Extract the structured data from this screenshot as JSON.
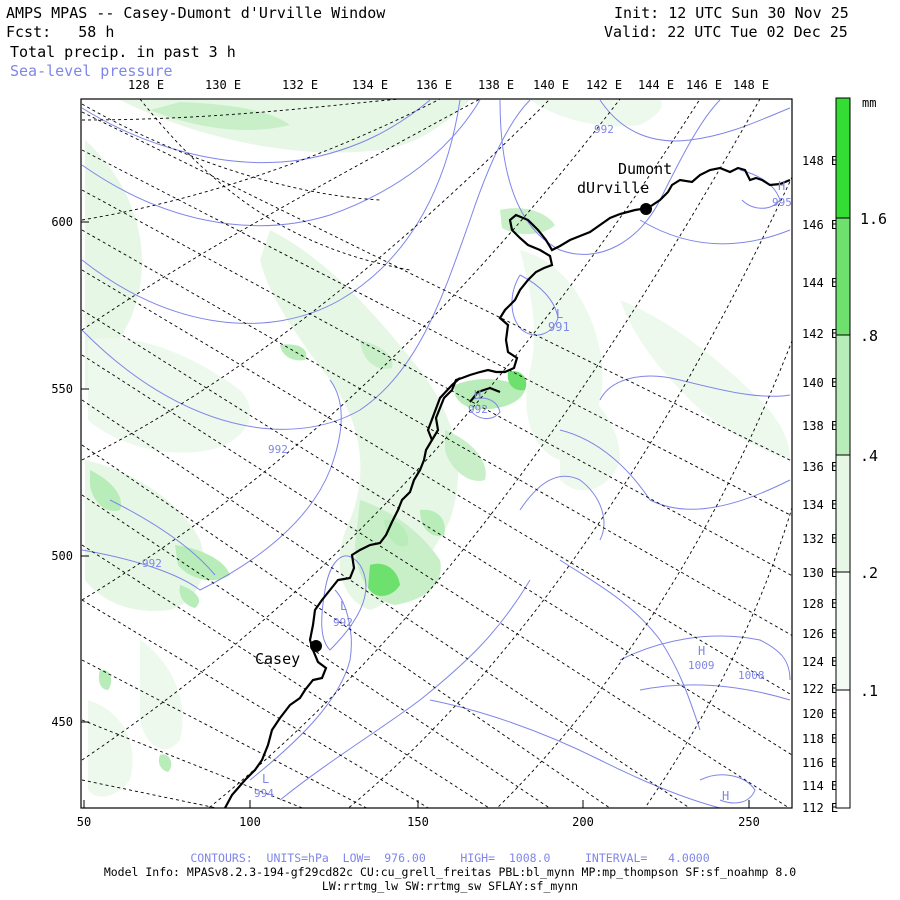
{
  "header": {
    "title": "AMPS MPAS -- Casey-Dumont d'Urville Window",
    "fcst_label": "Fcst:",
    "fcst_value": "58 h",
    "field_label": "Total precip. in past 3 h",
    "contour_label": "Sea-level pressure",
    "init_label": "Init:",
    "init_value": "12 UTC Sun 30 Nov 25",
    "valid_label": "Valid:",
    "valid_value": "22 UTC Tue 02 Dec 25"
  },
  "colors": {
    "precip_light": "#e6f7e6",
    "precip_mid": "#b8ecb8",
    "precip_strong": "#6ee06e",
    "precip_max": "#33dd33",
    "contour": "#7f86e8",
    "grid": "#000000"
  },
  "map": {
    "top_longitudes": [
      "128 E",
      "130 E",
      "132 E",
      "134 E",
      "136 E",
      "138 E",
      "140 E",
      "142 E",
      "144 E",
      "146 E",
      "148 E"
    ],
    "right_longitudes": [
      "148 E",
      "146 E",
      "144 E",
      "142 E",
      "140 E",
      "138 E",
      "136 E",
      "134 E",
      "132 E",
      "130 E",
      "128 E",
      "126 E",
      "124 E",
      "122 E",
      "120 E",
      "118 E",
      "116 E",
      "114 E",
      "112 E"
    ],
    "x_ticks": [
      "50",
      "100",
      "150",
      "200",
      "250"
    ],
    "y_ticks": [
      "600",
      "550",
      "500",
      "450"
    ],
    "stations": [
      {
        "name_line1": "Dumont",
        "name_line2": "dUrville"
      },
      {
        "name_line1": "Casey"
      }
    ],
    "contour_labels": [
      "992",
      "992",
      "992",
      "992",
      "992",
      "1009",
      "1008",
      "994",
      "995"
    ],
    "pressure_centers": [
      {
        "type": "L",
        "value": "991"
      },
      {
        "type": "H",
        "value": "993"
      },
      {
        "type": "L",
        "value": "992"
      },
      {
        "type": "H",
        "value": "1009"
      },
      {
        "type": "H",
        "value": ""
      },
      {
        "type": "L",
        "value": "994"
      },
      {
        "type": "H",
        "value": "995"
      }
    ]
  },
  "colorbar": {
    "unit": "mm",
    "labels": [
      "1.6",
      ".8",
      ".4",
      ".2",
      ".1"
    ]
  },
  "footer": {
    "contours": "CONTOURS:  UNITS=hPa  LOW=  976.00     HIGH=  1008.0     INTERVAL=   4.0000",
    "model_info": "Model Info: MPASv8.2.3-194-gf29cd82c CU:cu_grell_freitas PBL:bl_mynn MP:mp_thompson SF:sf_noahmp 8.0",
    "model_info2": "LW:rrtmg_lw SW:rrtmg_sw SFLAY:sf_mynn"
  }
}
